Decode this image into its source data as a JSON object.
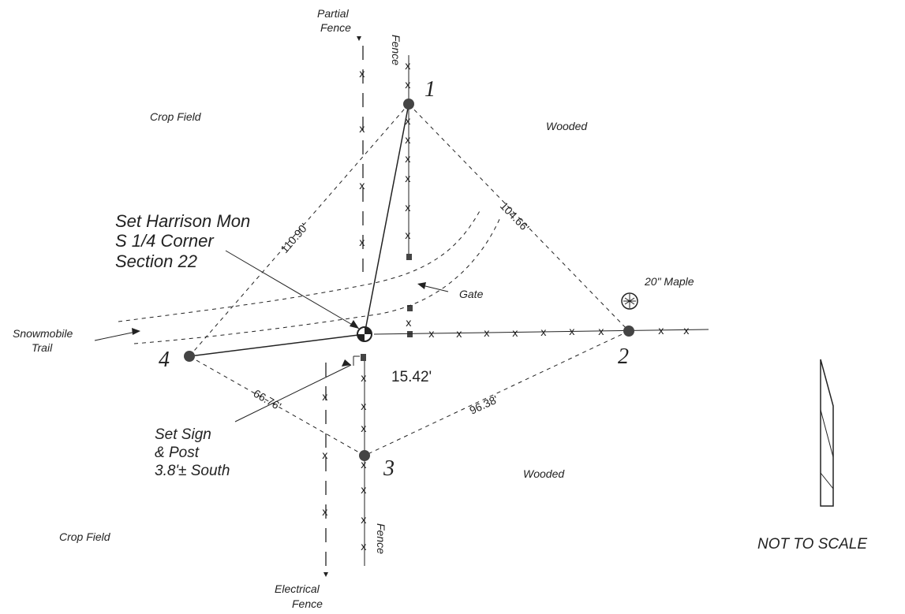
{
  "labels": {
    "partial_fence": [
      "Partial",
      "Fence"
    ],
    "fence_top": "Fence",
    "fence_bottom": "Fence",
    "crop_field_top": "Crop Field",
    "crop_field_bottom": "Crop Field",
    "wooded_top": "Wooded",
    "wooded_bottom": "Wooded",
    "monument": [
      "Set Harrison Mon",
      "S 1/4 Corner",
      "Section 22"
    ],
    "maple": "20\" Maple",
    "gate": "Gate",
    "snowmobile_trail": [
      "Snowmobile",
      "Trail"
    ],
    "sign_post": [
      "Set Sign",
      "& Post",
      "3.8'± South"
    ],
    "electrical_fence": [
      "Electrical",
      "Fence"
    ],
    "not_to_scale": "NOT TO SCALE"
  },
  "points": [
    "1",
    "2",
    "3",
    "4"
  ],
  "distances": {
    "d1": "110.90'",
    "d2": "104.66'",
    "d3": "15.42'",
    "d4": "66.76'",
    "d5": "96.38'"
  }
}
